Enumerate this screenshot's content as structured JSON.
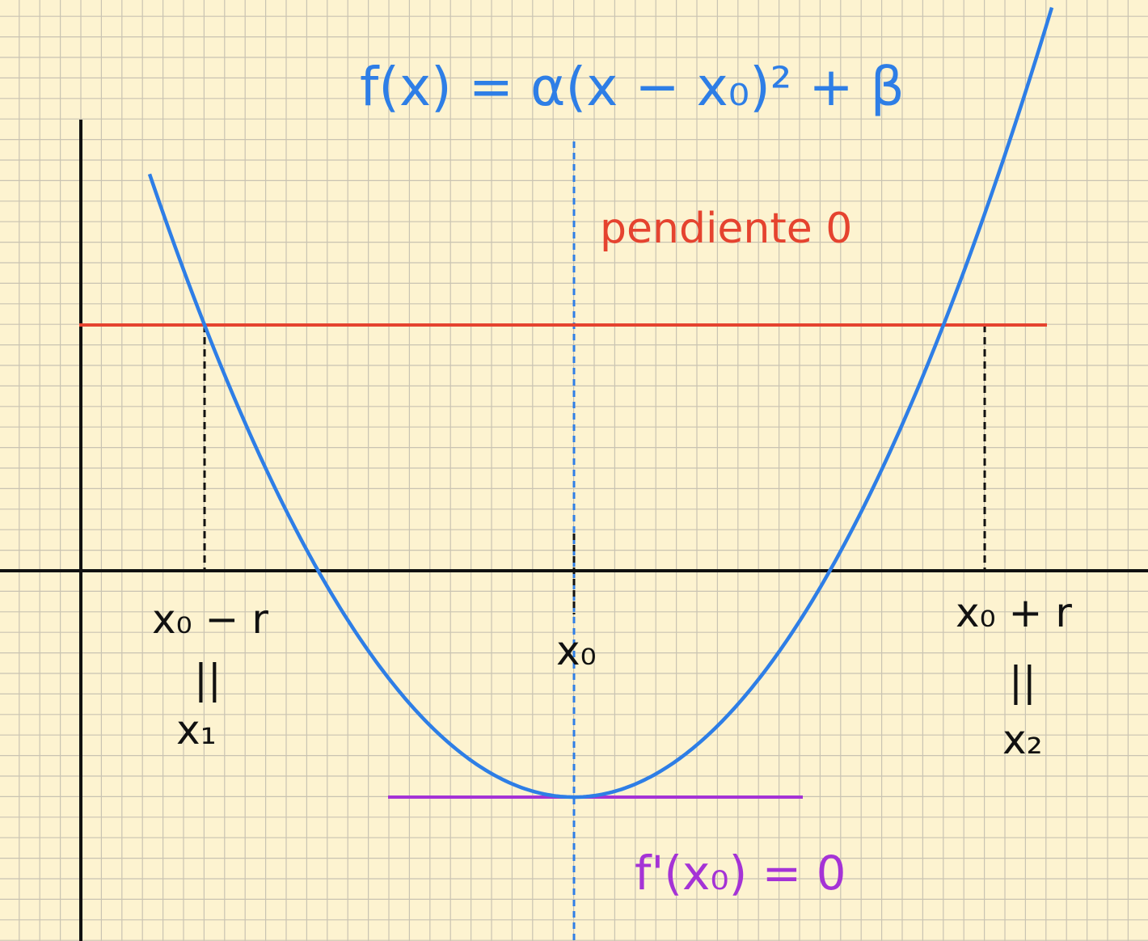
{
  "colors": {
    "background": "#fdf3d0",
    "grid": "#c9c3b2",
    "axes": "#111111",
    "curve": "#2e7ee6",
    "tangent_line": "#e5432f",
    "min_tangent": "#a533d6",
    "symmetry_axis": "#2e7ee6",
    "projection": "#111111"
  },
  "formula": "f(x) = α(x − x₀)² + β",
  "tangent_label": "pendiente 0",
  "derivative_label": "f'(x₀) = 0",
  "x_labels": {
    "left_top": "x₀ − r",
    "left_equals": "||",
    "left_bottom": "x₁",
    "center": "x₀",
    "right_top": "x₀ + r",
    "right_equals": "||",
    "right_bottom": "x₂"
  }
}
